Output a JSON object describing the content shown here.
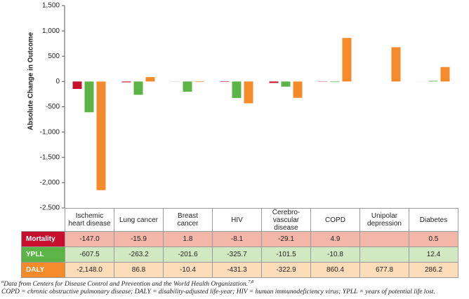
{
  "chart_data": {
    "type": "bar",
    "ylabel": "Absolute Change in Outcome",
    "categories": [
      "Ischemic heart disease",
      "Lung cancer",
      "Breast cancer",
      "HIV",
      "Cerebro-vascular disease",
      "COPD",
      "Unipolar depression",
      "Diabetes"
    ],
    "series": [
      {
        "name": "Mortality",
        "color": "#c8102e",
        "cell_color": "#f3b7a9",
        "values": [
          -147.0,
          -15.9,
          1.8,
          -8.1,
          -29.1,
          4.9,
          null,
          0.5
        ],
        "value_labels": [
          "-147.0",
          "-15.9",
          "1.8",
          "-8.1",
          "-29.1",
          "4.9",
          null,
          "0.5"
        ]
      },
      {
        "name": "YPLL",
        "color": "#5cb346",
        "cell_color": "#d2e8c3",
        "values": [
          -607.5,
          -263.2,
          -201.6,
          -325.7,
          -101.5,
          -10.8,
          null,
          12.4
        ],
        "value_labels": [
          "-607.5",
          "-263.2",
          "-201.6",
          "-325.7",
          "-101.5",
          "-10.8",
          null,
          "12.4"
        ]
      },
      {
        "name": "DALY",
        "color": "#f58a2b",
        "cell_color": "#fddcb9",
        "values": [
          -2148.0,
          86.8,
          -10.4,
          -431.3,
          -322.9,
          860.4,
          677.8,
          286.2
        ],
        "value_labels": [
          "-2,148.0",
          "86.8",
          "-10.4",
          "-431.3",
          "-322.9",
          "860.4",
          "677.8",
          "286.2"
        ]
      }
    ],
    "ylim": [
      -2500,
      1500
    ],
    "yticks": [
      {
        "value": 1500,
        "label": "1,500"
      },
      {
        "value": 1000,
        "label": "1,000"
      },
      500,
      0,
      -500,
      {
        "value": -1000,
        "label": "-1,000"
      },
      {
        "value": -1500,
        "label": "-1,500"
      },
      {
        "value": -2000,
        "label": "-2,000"
      },
      {
        "value": -2500,
        "label": "-2,500"
      }
    ]
  },
  "footnotes": [
    {
      "marker": "a",
      "text": "Data from Centers for Disease Control and Prevention and the World Health Organization.",
      "refs": "7,8"
    },
    {
      "text": "COPD = chronic obstructive pulmonary disease; DALY = disability-adjusted life-year; HIV = human immunodeficiency virus; YPLL = years of potential life lost."
    }
  ]
}
